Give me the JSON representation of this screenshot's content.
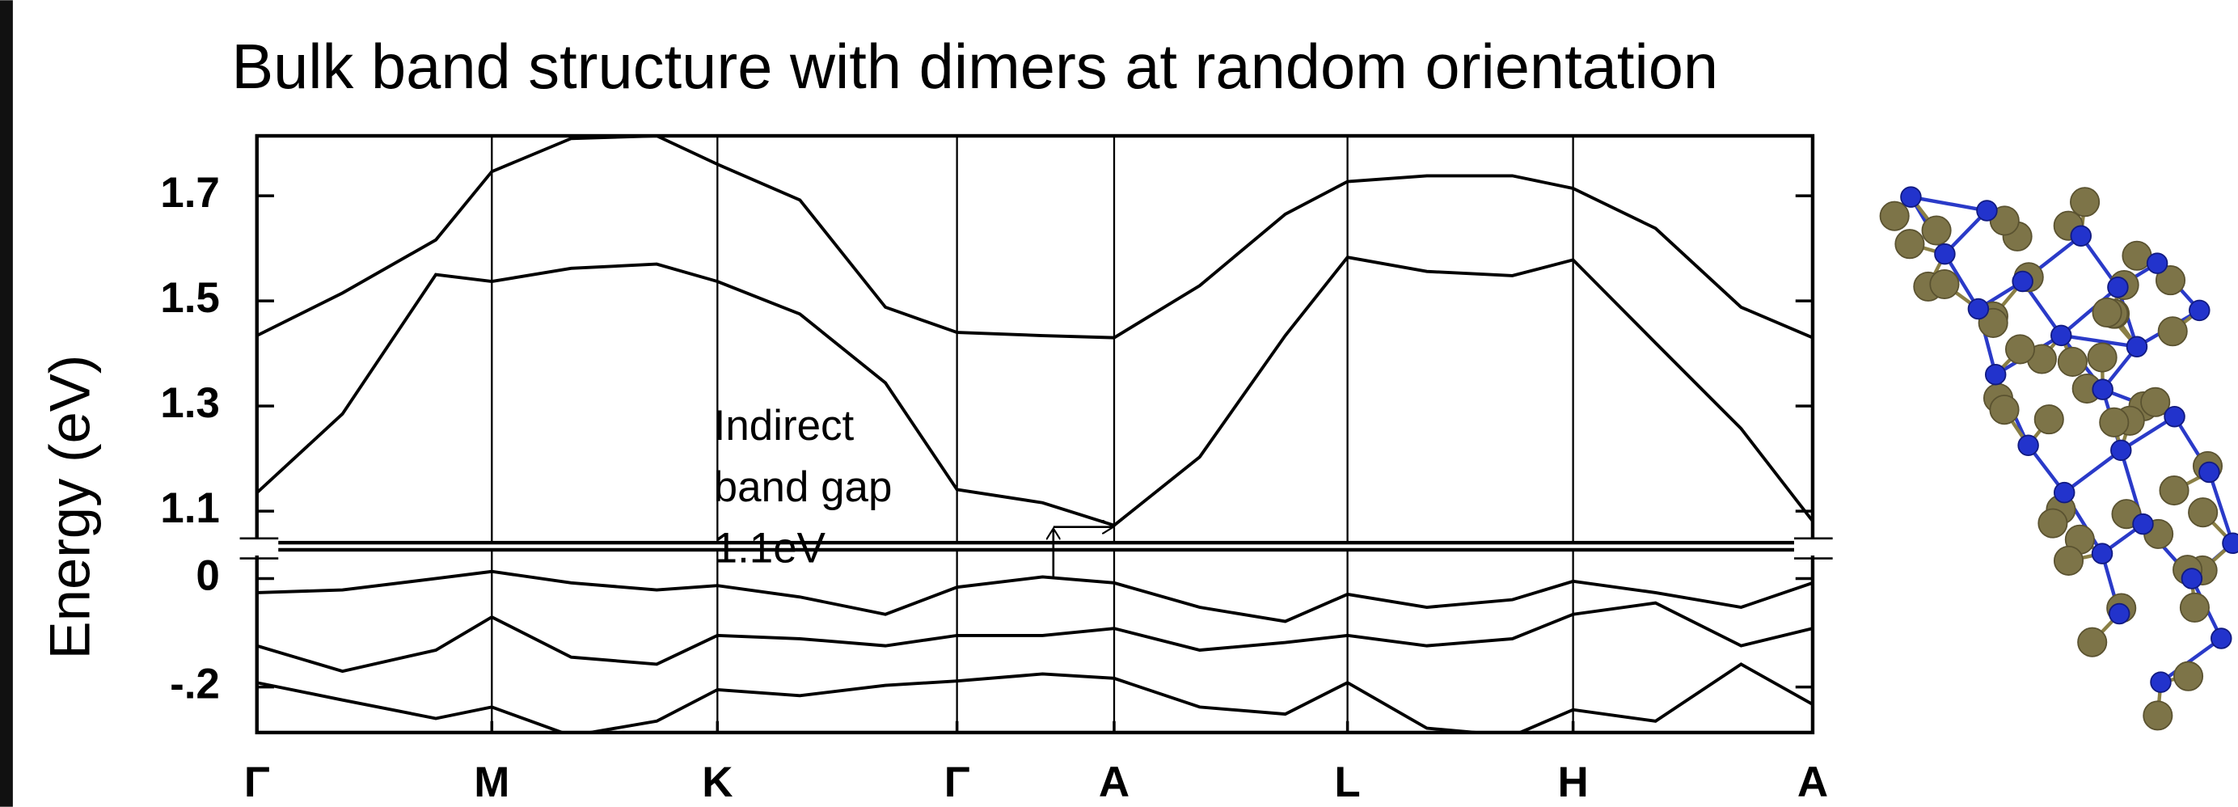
{
  "chart_data": [
    {
      "type": "line",
      "title": "Bulk band structure with dimers at random orientation",
      "ylabel": "Energy (eV)",
      "annotation": [
        "Indirect",
        "band gap",
        "1.1eV"
      ],
      "x": [
        0,
        0.055,
        0.115,
        0.151,
        0.202,
        0.257,
        0.296,
        0.349,
        0.404,
        0.45,
        0.505,
        0.551,
        0.606,
        0.661,
        0.701,
        0.752,
        0.807,
        0.846,
        0.899,
        0.954,
        1.0
      ],
      "xlim": [
        0,
        1
      ],
      "ylim": [
        1.04,
        1.814
      ],
      "yticks": [
        1.1,
        1.3,
        1.5,
        1.7
      ],
      "series": [
        {
          "color": "#000000",
          "values": [
            1.434,
            1.515,
            1.616,
            1.746,
            1.809,
            1.814,
            1.76,
            1.692,
            1.488,
            1.44,
            1.434,
            1.43,
            1.529,
            1.665,
            1.727,
            1.738,
            1.738,
            1.714,
            1.638,
            1.488,
            1.43
          ]
        },
        {
          "color": "#000000",
          "values": [
            1.135,
            1.285,
            1.55,
            1.537,
            1.562,
            1.57,
            1.537,
            1.475,
            1.344,
            1.141,
            1.116,
            1.073,
            1.203,
            1.434,
            1.583,
            1.556,
            1.548,
            1.578,
            1.42,
            1.257,
            1.081
          ]
        }
      ]
    },
    {
      "type": "line",
      "x": [
        0,
        0.055,
        0.115,
        0.151,
        0.202,
        0.257,
        0.296,
        0.349,
        0.404,
        0.45,
        0.505,
        0.551,
        0.606,
        0.661,
        0.701,
        0.752,
        0.807,
        0.846,
        0.899,
        0.954,
        1.0
      ],
      "xlim": [
        0,
        1
      ],
      "ylim": [
        -0.284,
        0.053
      ],
      "yticks": [
        0,
        {
          "value": -0.2,
          "label": "-.2"
        }
      ],
      "xticks": [
        {
          "value": 0,
          "label": "Γ"
        },
        {
          "value": 0.151,
          "label": "M"
        },
        {
          "value": 0.296,
          "label": "K"
        },
        {
          "value": 0.45,
          "label": "Γ"
        },
        {
          "value": 0.551,
          "label": "A"
        },
        {
          "value": 0.701,
          "label": "L"
        },
        {
          "value": 0.846,
          "label": "H"
        },
        {
          "value": 1.0,
          "label": "A"
        }
      ],
      "series": [
        {
          "color": "#000000",
          "values": [
            -0.026,
            -0.021,
            0,
            0.013,
            -0.008,
            -0.021,
            -0.013,
            -0.034,
            -0.066,
            -0.016,
            0.003,
            -0.008,
            -0.053,
            -0.079,
            -0.029,
            -0.053,
            -0.039,
            -0.005,
            -0.026,
            -0.053,
            -0.008
          ]
        },
        {
          "color": "#000000",
          "values": [
            -0.124,
            -0.171,
            -0.132,
            -0.071,
            -0.145,
            -0.158,
            -0.105,
            -0.111,
            -0.124,
            -0.105,
            -0.105,
            -0.092,
            -0.132,
            -0.118,
            -0.105,
            -0.124,
            -0.111,
            -0.066,
            -0.045,
            -0.124,
            -0.092
          ]
        },
        {
          "color": "#000000",
          "values": [
            -0.192,
            -0.224,
            -0.258,
            -0.237,
            -0.29,
            -0.263,
            -0.205,
            -0.216,
            -0.197,
            -0.189,
            -0.176,
            -0.184,
            -0.237,
            -0.25,
            -0.192,
            -0.276,
            -0.29,
            -0.242,
            -0.263,
            -0.158,
            -0.232
          ]
        }
      ]
    }
  ]
}
